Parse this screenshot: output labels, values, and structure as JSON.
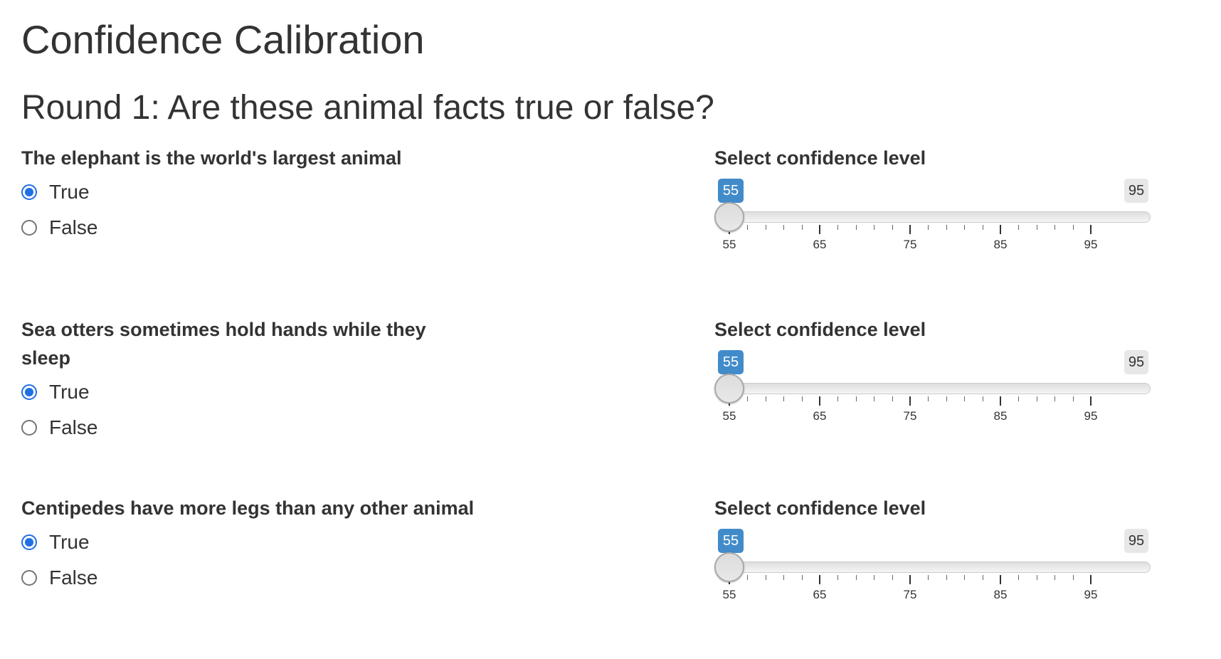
{
  "page_title": "Confidence Calibration",
  "round_title": "Round 1: Are these animal facts true or false?",
  "questions": [
    {
      "text": "The elephant is the world's largest animal",
      "options": [
        {
          "label": "True",
          "checked": true
        },
        {
          "label": "False",
          "checked": false
        }
      ],
      "slider": {
        "label": "Select confidence level",
        "min": 55,
        "max": 95,
        "value": 55,
        "value_badge": "55",
        "max_badge": "95",
        "tick_labels": [
          "55",
          "65",
          "75",
          "85",
          "95"
        ]
      }
    },
    {
      "text": "Sea otters sometimes hold hands while they sleep",
      "options": [
        {
          "label": "True",
          "checked": true
        },
        {
          "label": "False",
          "checked": false
        }
      ],
      "slider": {
        "label": "Select confidence level",
        "min": 55,
        "max": 95,
        "value": 55,
        "value_badge": "55",
        "max_badge": "95",
        "tick_labels": [
          "55",
          "65",
          "75",
          "85",
          "95"
        ]
      }
    },
    {
      "text": "Centipedes have more legs than any other animal",
      "options": [
        {
          "label": "True",
          "checked": true
        },
        {
          "label": "False",
          "checked": false
        }
      ],
      "slider": {
        "label": "Select confidence level",
        "min": 55,
        "max": 95,
        "value": 55,
        "value_badge": "55",
        "max_badge": "95",
        "tick_labels": [
          "55",
          "65",
          "75",
          "85",
          "95"
        ]
      }
    }
  ],
  "colors": {
    "radio_accent": "#1f6fe5",
    "value_badge_bg": "#428bca",
    "max_badge_bg": "#e7e7e7",
    "text": "#333333"
  }
}
